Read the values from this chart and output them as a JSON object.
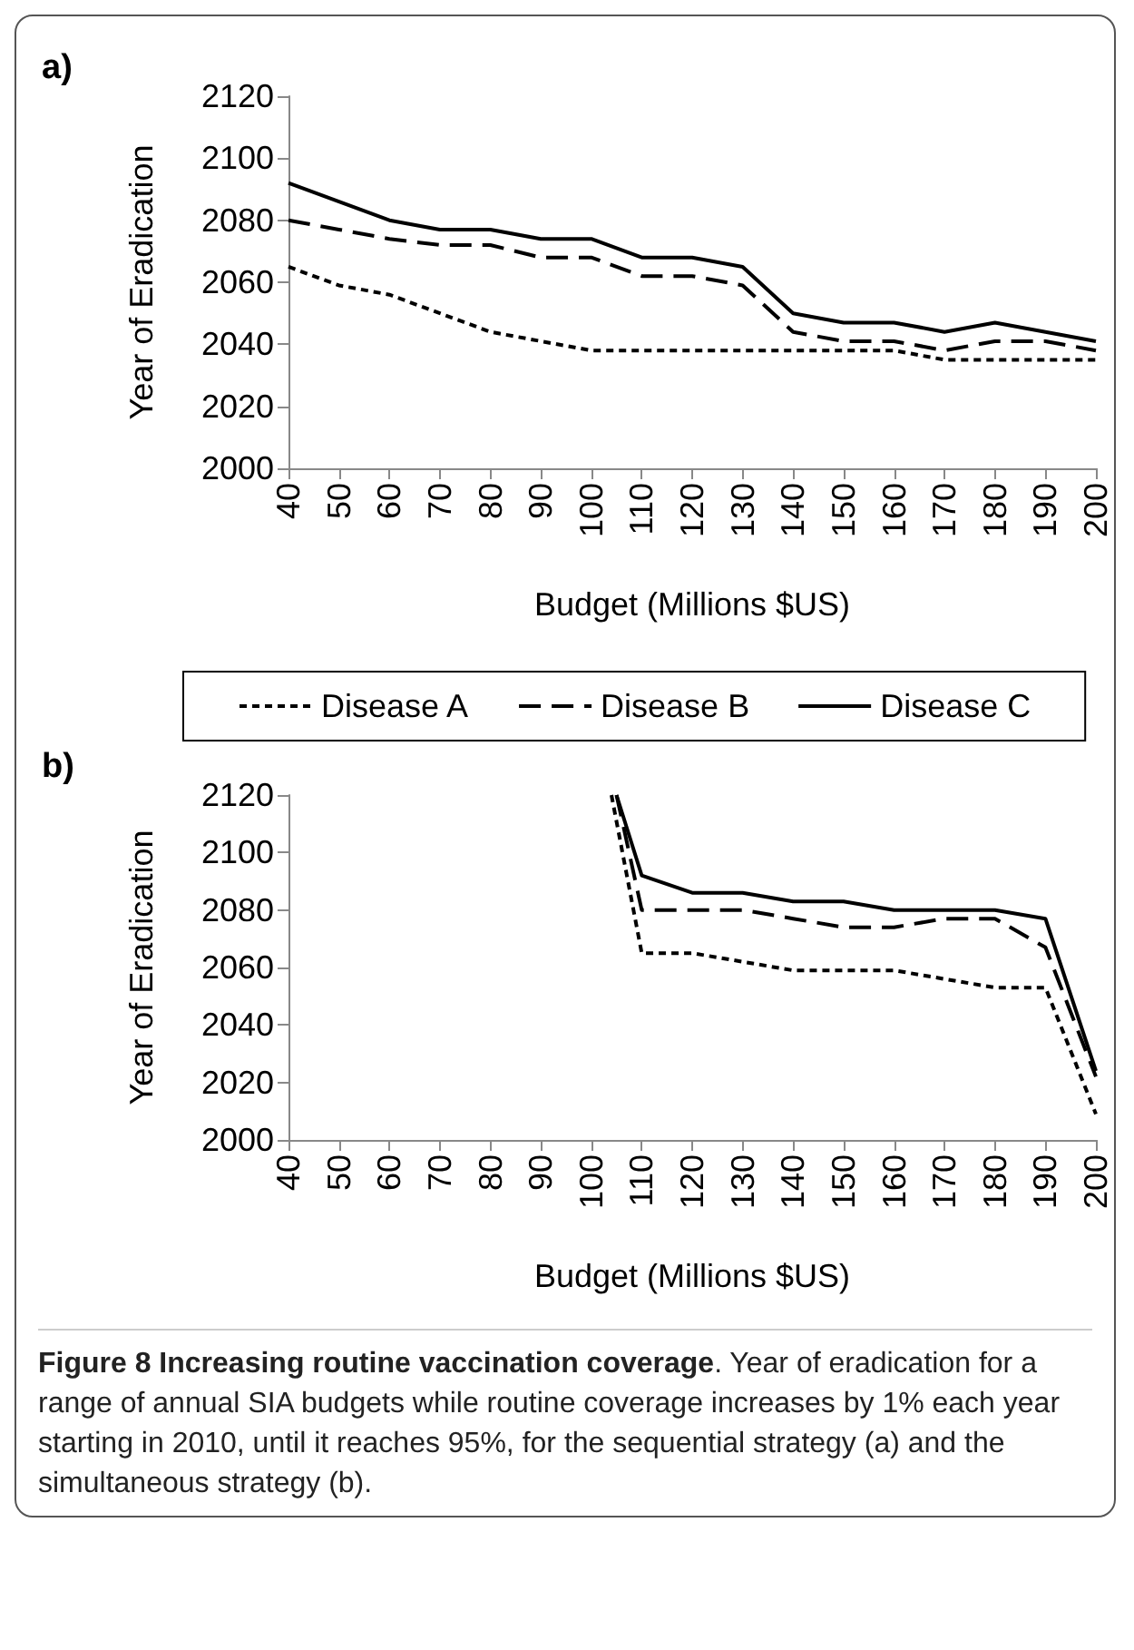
{
  "chart_data": [
    {
      "type": "line",
      "annotations": [
        "a)"
      ],
      "xlabel": "Budget (Millions $US)",
      "ylabel": "Year of Eradication",
      "xlim": [
        40,
        200
      ],
      "xticks": [
        40,
        50,
        60,
        70,
        80,
        90,
        100,
        110,
        120,
        130,
        140,
        150,
        160,
        170,
        180,
        190,
        200
      ],
      "ylim": [
        2000,
        2120
      ],
      "yticks": [
        2000,
        2020,
        2040,
        2060,
        2080,
        2100,
        2120
      ],
      "grid": false,
      "legend": "bottom",
      "marker": "none",
      "x": [
        40,
        50,
        60,
        70,
        80,
        90,
        100,
        110,
        120,
        130,
        140,
        150,
        160,
        170,
        180,
        190,
        200
      ],
      "series": [
        {
          "name": "Disease A",
          "color": "#000000",
          "line_style": "dotted",
          "values": [
            2065,
            2059,
            2056,
            2050,
            2044,
            2041,
            2038,
            2038,
            2038,
            2038,
            2038,
            2038,
            2038,
            2035,
            2035,
            2035,
            2035
          ]
        },
        {
          "name": "Disease B",
          "color": "#000000",
          "line_style": "dashed",
          "values": [
            2080,
            2077,
            2074,
            2072,
            2072,
            2068,
            2068,
            2062,
            2062,
            2059,
            2044,
            2041,
            2041,
            2038,
            2041,
            2041,
            2038
          ]
        },
        {
          "name": "Disease C",
          "color": "#000000",
          "line_style": "solid",
          "values": [
            2092,
            2086,
            2080,
            2077,
            2077,
            2074,
            2074,
            2068,
            2068,
            2065,
            2050,
            2047,
            2047,
            2044,
            2047,
            2044,
            2041
          ]
        }
      ]
    },
    {
      "type": "line",
      "annotations": [
        "b)",
        "Figure 8 Increasing routine vaccination coverage. Year of eradication for a range of annual SIA budgets while routine coverage increases by 1% each year starting in 2010, until it reaches 95%, for the sequential strategy (a) and the simultaneous strategy (b)."
      ],
      "xlabel": "Budget (Millions $US)",
      "ylabel": "Year of Eradication",
      "xlim": [
        40,
        200
      ],
      "xticks": [
        40,
        50,
        60,
        70,
        80,
        90,
        100,
        110,
        120,
        130,
        140,
        150,
        160,
        170,
        180,
        190,
        200
      ],
      "ylim": [
        2000,
        2120
      ],
      "yticks": [
        2000,
        2020,
        2040,
        2060,
        2080,
        2100,
        2120
      ],
      "grid": false,
      "legend": false,
      "marker": "none",
      "series": [
        {
          "color": "#000000",
          "line_style": "dotted",
          "x": [
            104,
            110,
            120,
            130,
            140,
            150,
            160,
            170,
            180,
            190,
            200
          ],
          "values": [
            2120,
            2065,
            2065,
            2062,
            2059,
            2059,
            2059,
            2056,
            2053,
            2053,
            2009
          ]
        },
        {
          "color": "#000000",
          "line_style": "dashed",
          "x": [
            105,
            110,
            120,
            130,
            140,
            150,
            160,
            170,
            180,
            190,
            200
          ],
          "values": [
            2120,
            2080,
            2080,
            2080,
            2077,
            2074,
            2074,
            2077,
            2077,
            2067,
            2022
          ]
        },
        {
          "color": "#000000",
          "line_style": "solid",
          "x": [
            105,
            110,
            120,
            130,
            140,
            150,
            160,
            170,
            180,
            190,
            200
          ],
          "values": [
            2120,
            2092,
            2086,
            2086,
            2083,
            2083,
            2080,
            2080,
            2080,
            2077,
            2024
          ]
        }
      ]
    }
  ]
}
